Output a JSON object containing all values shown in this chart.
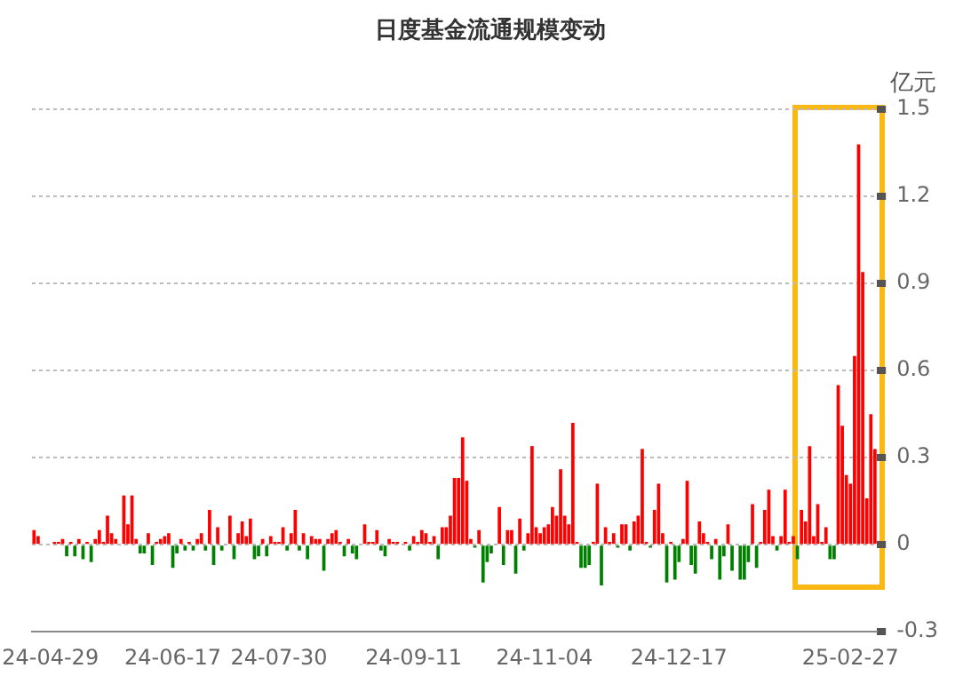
{
  "chart_data": {
    "type": "bar",
    "title": "日度基金流通规模变动",
    "ylabel": "亿元",
    "categories": [
      null,
      null,
      null,
      null,
      "24-04-29",
      null,
      null,
      null,
      null,
      null,
      null,
      null,
      null,
      null,
      null,
      null,
      null,
      null,
      null,
      null,
      null,
      null,
      null,
      null,
      null,
      null,
      null,
      null,
      null,
      null,
      null,
      null,
      null,
      null,
      "24-06-17",
      null,
      null,
      null,
      null,
      null,
      null,
      null,
      null,
      null,
      null,
      null,
      null,
      null,
      null,
      null,
      null,
      null,
      null,
      null,
      null,
      null,
      null,
      null,
      null,
      null,
      "24-07-30",
      null,
      null,
      null,
      null,
      null,
      null,
      null,
      null,
      null,
      null,
      null,
      null,
      null,
      null,
      null,
      null,
      null,
      null,
      null,
      null,
      null,
      null,
      null,
      null,
      null,
      null,
      null,
      null,
      null,
      null,
      null,
      null,
      "24-09-11",
      null,
      null,
      null,
      null,
      null,
      null,
      null,
      null,
      null,
      null,
      null,
      null,
      null,
      null,
      null,
      null,
      null,
      null,
      null,
      null,
      null,
      null,
      null,
      null,
      null,
      null,
      null,
      null,
      null,
      null,
      null,
      "24-11-04",
      null,
      null,
      null,
      null,
      null,
      null,
      null,
      null,
      null,
      null,
      null,
      null,
      null,
      null,
      null,
      null,
      null,
      null,
      null,
      null,
      null,
      null,
      null,
      null,
      null,
      null,
      null,
      null,
      null,
      null,
      null,
      null,
      "24-12-17",
      null,
      null,
      null,
      null,
      null,
      null,
      null,
      null,
      null,
      null,
      null,
      null,
      null,
      null,
      null,
      null,
      null,
      null,
      null,
      null,
      null,
      null,
      null,
      null,
      null,
      null,
      null,
      null,
      null,
      null,
      null,
      null,
      null,
      null,
      null,
      null,
      null,
      null,
      null,
      null,
      null,
      "25-02-27",
      null,
      null,
      null,
      null,
      null,
      null
    ],
    "values": [
      0.05,
      0.03,
      0,
      0,
      0,
      0.01,
      0.01,
      0.02,
      -0.04,
      0.01,
      -0.04,
      0.02,
      -0.05,
      0.01,
      -0.06,
      0.02,
      0.05,
      0.01,
      0.1,
      0.04,
      0.02,
      0,
      0.17,
      0.07,
      0.17,
      0.02,
      -0.03,
      -0.03,
      0.04,
      -0.07,
      0.01,
      0.02,
      0.03,
      0.04,
      -0.08,
      -0.03,
      0.02,
      -0.02,
      0.01,
      -0.02,
      0.02,
      0.04,
      -0.02,
      0.12,
      -0.07,
      0.06,
      -0.02,
      0,
      0.1,
      -0.05,
      0.04,
      0.08,
      0.03,
      0.09,
      -0.05,
      -0.04,
      0.02,
      -0.04,
      0.03,
      0.01,
      0.01,
      0.06,
      -0.02,
      0.04,
      0.12,
      -0.02,
      0.04,
      -0.05,
      0.03,
      0.02,
      0.02,
      -0.09,
      0.02,
      0.04,
      0.05,
      0.01,
      -0.04,
      0.02,
      -0.03,
      -0.05,
      0,
      0.07,
      0.01,
      0.01,
      0.05,
      -0.02,
      -0.04,
      0.02,
      0.01,
      0.01,
      0,
      0.01,
      -0.02,
      0.03,
      0.01,
      0.05,
      0.04,
      0.01,
      0.03,
      -0.05,
      0.06,
      0.06,
      0.1,
      0.23,
      0.23,
      0.37,
      0.22,
      0.02,
      -0.01,
      0.05,
      -0.13,
      -0.06,
      -0.03,
      0,
      0.13,
      -0.07,
      0.05,
      0.05,
      -0.1,
      0.09,
      -0.02,
      0.04,
      0.34,
      0.06,
      0.04,
      0.06,
      0.07,
      0.13,
      0.1,
      0.26,
      0.1,
      0.07,
      0.42,
      0.01,
      -0.08,
      -0.08,
      -0.07,
      0.01,
      0.21,
      -0.14,
      0.06,
      0.01,
      0.04,
      -0.01,
      0.07,
      0.07,
      -0.02,
      0.08,
      0.1,
      0.33,
      0.01,
      -0.01,
      0.12,
      0.21,
      0.04,
      -0.13,
      0.01,
      -0.12,
      -0.06,
      0.02,
      0.22,
      -0.07,
      -0.1,
      0.08,
      0.04,
      0.01,
      -0.05,
      0.02,
      -0.12,
      -0.04,
      0.07,
      -0.09,
      0,
      -0.12,
      -0.12,
      -0.06,
      0.14,
      -0.08,
      0.01,
      0.12,
      0.19,
      0.03,
      -0.02,
      0.03,
      0.19,
      0.01,
      0.03,
      -0.05,
      0.12,
      0.08,
      0.34,
      0.03,
      0.14,
      0.01,
      0.06,
      -0.05,
      -0.05,
      0.55,
      0.41,
      0.24,
      0.21,
      0.65,
      1.38,
      0.94,
      0.16,
      0.45,
      0.33
    ],
    "colors": [
      "#ff0000",
      "#ff0000",
      "#ff0000",
      "#ff0000",
      "#ff0000",
      "#ff0000",
      "#ff0000",
      "#ff0000",
      "#008000",
      "#ff0000",
      "#008000",
      "#ff0000",
      "#008000",
      "#ff0000",
      "#008000",
      "#ff0000",
      "#ff0000",
      "#ff0000",
      "#ff0000",
      "#ff0000",
      "#ff0000",
      "#ff0000",
      "#ff0000",
      "#ff0000",
      "#ff0000",
      "#ff0000",
      "#008000",
      "#008000",
      "#ff0000",
      "#008000",
      "#ff0000",
      "#ff0000",
      "#ff0000",
      "#ff0000",
      "#008000",
      "#008000",
      "#ff0000",
      "#008000",
      "#ff0000",
      "#008000",
      "#ff0000",
      "#ff0000",
      "#008000",
      "#ff0000",
      "#008000",
      "#ff0000",
      "#008000",
      "#ff0000",
      "#ff0000",
      "#008000",
      "#ff0000",
      "#ff0000",
      "#ff0000",
      "#ff0000",
      "#008000",
      "#008000",
      "#ff0000",
      "#008000",
      "#ff0000",
      "#ff0000",
      "#ff0000",
      "#ff0000",
      "#008000",
      "#ff0000",
      "#ff0000",
      "#008000",
      "#ff0000",
      "#008000",
      "#ff0000",
      "#ff0000",
      "#ff0000",
      "#008000",
      "#ff0000",
      "#ff0000",
      "#ff0000",
      "#ff0000",
      "#008000",
      "#ff0000",
      "#008000",
      "#008000",
      "#ff0000",
      "#ff0000",
      "#ff0000",
      "#ff0000",
      "#ff0000",
      "#008000",
      "#008000",
      "#ff0000",
      "#ff0000",
      "#ff0000",
      "#ff0000",
      "#ff0000",
      "#008000",
      "#ff0000",
      "#ff0000",
      "#ff0000",
      "#ff0000",
      "#ff0000",
      "#ff0000",
      "#008000",
      "#ff0000",
      "#ff0000",
      "#ff0000",
      "#ff0000",
      "#ff0000",
      "#ff0000",
      "#ff0000",
      "#ff0000",
      "#008000",
      "#ff0000",
      "#008000",
      "#008000",
      "#008000",
      "#ff0000",
      "#ff0000",
      "#008000",
      "#ff0000",
      "#ff0000",
      "#008000",
      "#ff0000",
      "#008000",
      "#ff0000",
      "#ff0000",
      "#ff0000",
      "#ff0000",
      "#ff0000",
      "#ff0000",
      "#ff0000",
      "#ff0000",
      "#ff0000",
      "#ff0000",
      "#ff0000",
      "#ff0000",
      "#ff0000",
      "#008000",
      "#008000",
      "#008000",
      "#ff0000",
      "#ff0000",
      "#008000",
      "#ff0000",
      "#ff0000",
      "#ff0000",
      "#008000",
      "#ff0000",
      "#ff0000",
      "#008000",
      "#ff0000",
      "#ff0000",
      "#ff0000",
      "#ff0000",
      "#008000",
      "#ff0000",
      "#ff0000",
      "#ff0000",
      "#008000",
      "#ff0000",
      "#008000",
      "#008000",
      "#ff0000",
      "#ff0000",
      "#008000",
      "#008000",
      "#ff0000",
      "#ff0000",
      "#ff0000",
      "#008000",
      "#ff0000",
      "#008000",
      "#008000",
      "#ff0000",
      "#008000",
      "#ff0000",
      "#008000",
      "#008000",
      "#008000",
      "#ff0000",
      "#008000",
      "#ff0000",
      "#ff0000",
      "#ff0000",
      "#ff0000",
      "#008000",
      "#ff0000",
      "#ff0000",
      "#ff0000",
      "#ff0000",
      "#008000",
      "#ff0000",
      "#ff0000",
      "#ff0000",
      "#ff0000",
      "#ff0000",
      "#ff0000",
      "#ff0000",
      "#008000",
      "#008000",
      "#ff0000",
      "#ff0000",
      "#ff0000",
      "#ff0000",
      "#ff0000",
      "#ff0000",
      "#ff0000",
      "#ff0000",
      "#ff0000",
      "#ff0000"
    ],
    "ylim": [
      -0.3,
      1.5
    ],
    "yticks": [
      -0.3,
      0,
      0.3,
      0.6,
      0.9,
      1.2,
      1.5
    ],
    "grid": "y"
  }
}
